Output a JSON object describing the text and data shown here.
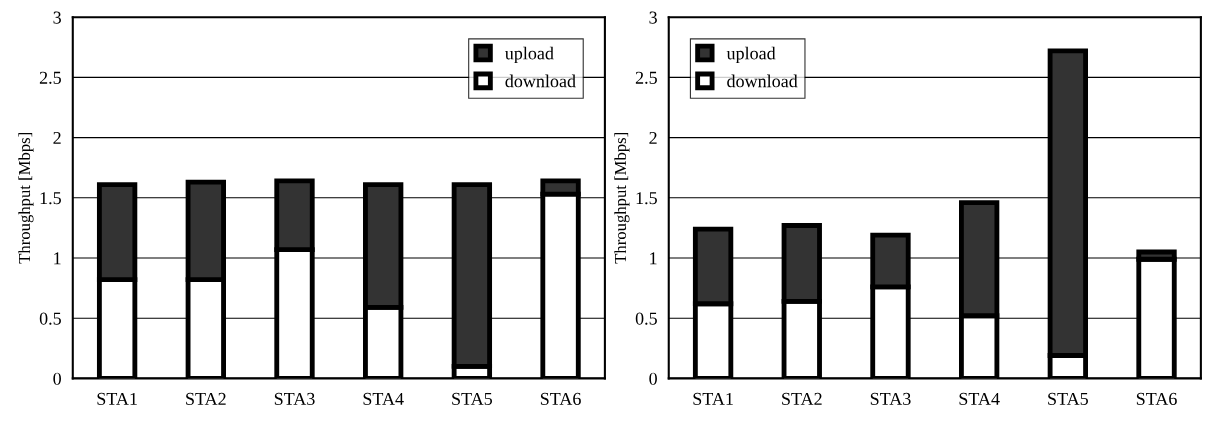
{
  "chart_data": [
    {
      "type": "bar",
      "stacked": true,
      "ylabel": "Throughput [Mbps]",
      "categories": [
        "STA1",
        "STA2",
        "STA3",
        "STA4",
        "STA5",
        "STA6"
      ],
      "ylim": [
        0,
        3
      ],
      "yticks": [
        0,
        0.5,
        1,
        1.5,
        2,
        2.5,
        3
      ],
      "grid": "y",
      "legend": "top right",
      "series": [
        {
          "name": "download",
          "color": "#ffffff",
          "values": [
            0.82,
            0.82,
            1.07,
            0.59,
            0.1,
            1.53
          ]
        },
        {
          "name": "upload",
          "color": "#333333",
          "values": [
            0.79,
            0.81,
            0.57,
            1.02,
            1.51,
            0.11
          ]
        }
      ]
    },
    {
      "type": "bar",
      "stacked": true,
      "ylabel": "Throughput [Mbps]",
      "categories": [
        "STA1",
        "STA2",
        "STA3",
        "STA4",
        "STA5",
        "STA6"
      ],
      "ylim": [
        0,
        3
      ],
      "yticks": [
        0,
        0.5,
        1,
        1.5,
        2,
        2.5,
        3
      ],
      "grid": "y",
      "legend": "top left",
      "series": [
        {
          "name": "download",
          "color": "#ffffff",
          "values": [
            0.62,
            0.64,
            0.76,
            0.52,
            0.19,
            0.99
          ]
        },
        {
          "name": "upload",
          "color": "#333333",
          "values": [
            0.62,
            0.63,
            0.43,
            0.94,
            2.53,
            0.06
          ]
        }
      ]
    }
  ]
}
